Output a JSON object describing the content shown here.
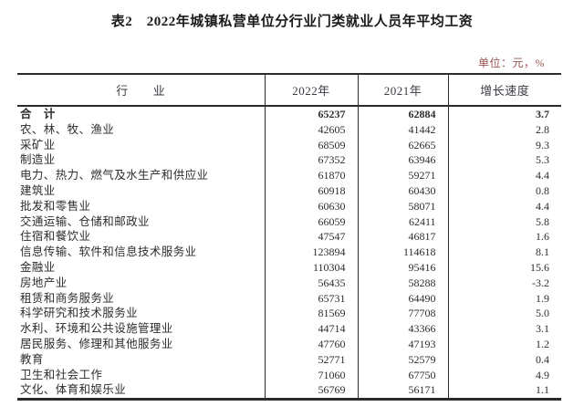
{
  "title": "表2　2022年城镇私营单位分行业门类就业人员年平均工资",
  "unit_label": "单位：元，%",
  "colors": {
    "background": "#ffffff",
    "title_text": "#1a1a1a",
    "header_text": "#3c3c44",
    "body_text": "#2d2d2d",
    "unit_label_text": "#9a5450",
    "table_border": "#2b2b2b"
  },
  "table": {
    "headers": [
      "行　　业",
      "2022年",
      "2021年",
      "增长速度"
    ],
    "rows": [
      {
        "industry": "合　计",
        "y2022": "65237",
        "y2021": "62884",
        "growth": "3.7",
        "bold": true
      },
      {
        "industry": "农、林、牧、渔业",
        "y2022": "42605",
        "y2021": "41442",
        "growth": "2.8",
        "bold": false
      },
      {
        "industry": "采矿业",
        "y2022": "68509",
        "y2021": "62665",
        "growth": "9.3",
        "bold": false
      },
      {
        "industry": "制造业",
        "y2022": "67352",
        "y2021": "63946",
        "growth": "5.3",
        "bold": false
      },
      {
        "industry": "电力、热力、燃气及水生产和供应业",
        "y2022": "61870",
        "y2021": "59271",
        "growth": "4.4",
        "bold": false
      },
      {
        "industry": "建筑业",
        "y2022": "60918",
        "y2021": "60430",
        "growth": "0.8",
        "bold": false
      },
      {
        "industry": "批发和零售业",
        "y2022": "60630",
        "y2021": "58071",
        "growth": "4.4",
        "bold": false
      },
      {
        "industry": "交通运输、仓储和邮政业",
        "y2022": "66059",
        "y2021": "62411",
        "growth": "5.8",
        "bold": false
      },
      {
        "industry": "住宿和餐饮业",
        "y2022": "47547",
        "y2021": "46817",
        "growth": "1.6",
        "bold": false
      },
      {
        "industry": "信息传输、软件和信息技术服务业",
        "y2022": "123894",
        "y2021": "114618",
        "growth": "8.1",
        "bold": false
      },
      {
        "industry": "金融业",
        "y2022": "110304",
        "y2021": "95416",
        "growth": "15.6",
        "bold": false
      },
      {
        "industry": "房地产业",
        "y2022": "56435",
        "y2021": "58288",
        "growth": "-3.2",
        "bold": false
      },
      {
        "industry": "租赁和商务服务业",
        "y2022": "65731",
        "y2021": "64490",
        "growth": "1.9",
        "bold": false
      },
      {
        "industry": "科学研究和技术服务业",
        "y2022": "81569",
        "y2021": "77708",
        "growth": "5.0",
        "bold": false
      },
      {
        "industry": "水利、环境和公共设施管理业",
        "y2022": "44714",
        "y2021": "43366",
        "growth": "3.1",
        "bold": false
      },
      {
        "industry": "居民服务、修理和其他服务业",
        "y2022": "47760",
        "y2021": "47193",
        "growth": "1.2",
        "bold": false
      },
      {
        "industry": "教育",
        "y2022": "52771",
        "y2021": "52579",
        "growth": "0.4",
        "bold": false
      },
      {
        "industry": "卫生和社会工作",
        "y2022": "71060",
        "y2021": "67750",
        "growth": "4.9",
        "bold": false
      },
      {
        "industry": "文化、体育和娱乐业",
        "y2022": "56769",
        "y2021": "56171",
        "growth": "1.1",
        "bold": false
      }
    ]
  }
}
